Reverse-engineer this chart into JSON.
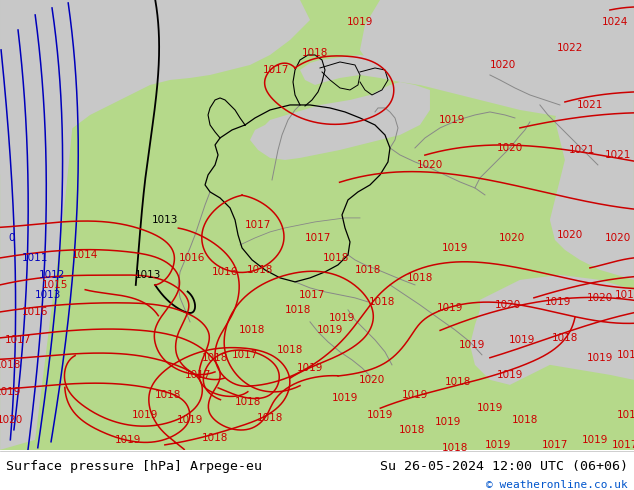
{
  "title_left": "Surface pressure [hPa] Arpege-eu",
  "title_right": "Su 26-05-2024 12:00 UTC (06+06)",
  "copyright": "© weatheronline.co.uk",
  "land_green": "#b5d98a",
  "land_green_dark": "#9ecf72",
  "ocean_grey": "#c8c8c8",
  "border_grey": "#888888",
  "red": "#cc0000",
  "blue": "#0000bb",
  "black": "#000000",
  "footer_bg": "#ffffff",
  "figsize": [
    6.34,
    4.9
  ],
  "dpi": 100
}
